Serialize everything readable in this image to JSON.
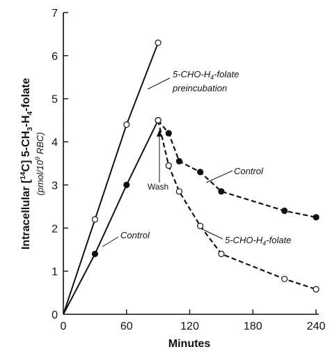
{
  "chart_data": {
    "type": "line",
    "xlabel": "Minutes",
    "ylabel_parts": {
      "prefix": "Intracellular [",
      "isotope_mass": "14",
      "isotope_element": "C",
      "mid": "] 5-CH",
      "sub3": "3",
      "mid2": "-H",
      "sub4": "4",
      "suffix": "-folate",
      "unit_prefix": "(pmol/10",
      "unit_exp": "9",
      "unit_suffix": " RBC)"
    },
    "xlim": [
      0,
      240
    ],
    "ylim": [
      0,
      7
    ],
    "x_ticks": [
      0,
      60,
      120,
      180,
      240
    ],
    "y_ticks": [
      0,
      1,
      2,
      3,
      4,
      5,
      6,
      7
    ],
    "series": [
      {
        "id": "pre",
        "style": "solid",
        "marker": "open",
        "points": [
          [
            0,
            0
          ],
          [
            30,
            2.2
          ],
          [
            60,
            4.4
          ],
          [
            90,
            6.3
          ]
        ]
      },
      {
        "id": "ctrl-up",
        "style": "solid",
        "marker": "filled",
        "points": [
          [
            0,
            0
          ],
          [
            30,
            1.4
          ],
          [
            60,
            3.0
          ],
          [
            90,
            4.5
          ]
        ]
      },
      {
        "id": "ctrl-wash",
        "style": "dashed",
        "marker": "filled",
        "points": [
          [
            90,
            4.5
          ],
          [
            100,
            4.2
          ],
          [
            110,
            3.55
          ],
          [
            130,
            3.3
          ],
          [
            150,
            2.85
          ],
          [
            210,
            2.4
          ],
          [
            240,
            2.25
          ]
        ]
      },
      {
        "id": "folate-wash",
        "style": "dashed",
        "marker": "open",
        "points": [
          [
            90,
            4.5
          ],
          [
            100,
            3.45
          ],
          [
            110,
            2.85
          ],
          [
            130,
            2.05
          ],
          [
            150,
            1.4
          ],
          [
            210,
            0.82
          ],
          [
            240,
            0.58
          ]
        ]
      }
    ],
    "annotations": {
      "pre_line1": "5-CHO-H",
      "pre_line1_sub": "4",
      "pre_line1_end": "-folate",
      "pre_line2": "preincubation",
      "control_upper": "Control",
      "control_lower": "Control",
      "wash": "Wash",
      "folate": "5-CHO-H",
      "folate_sub": "4",
      "folate_end": "-folate"
    }
  }
}
